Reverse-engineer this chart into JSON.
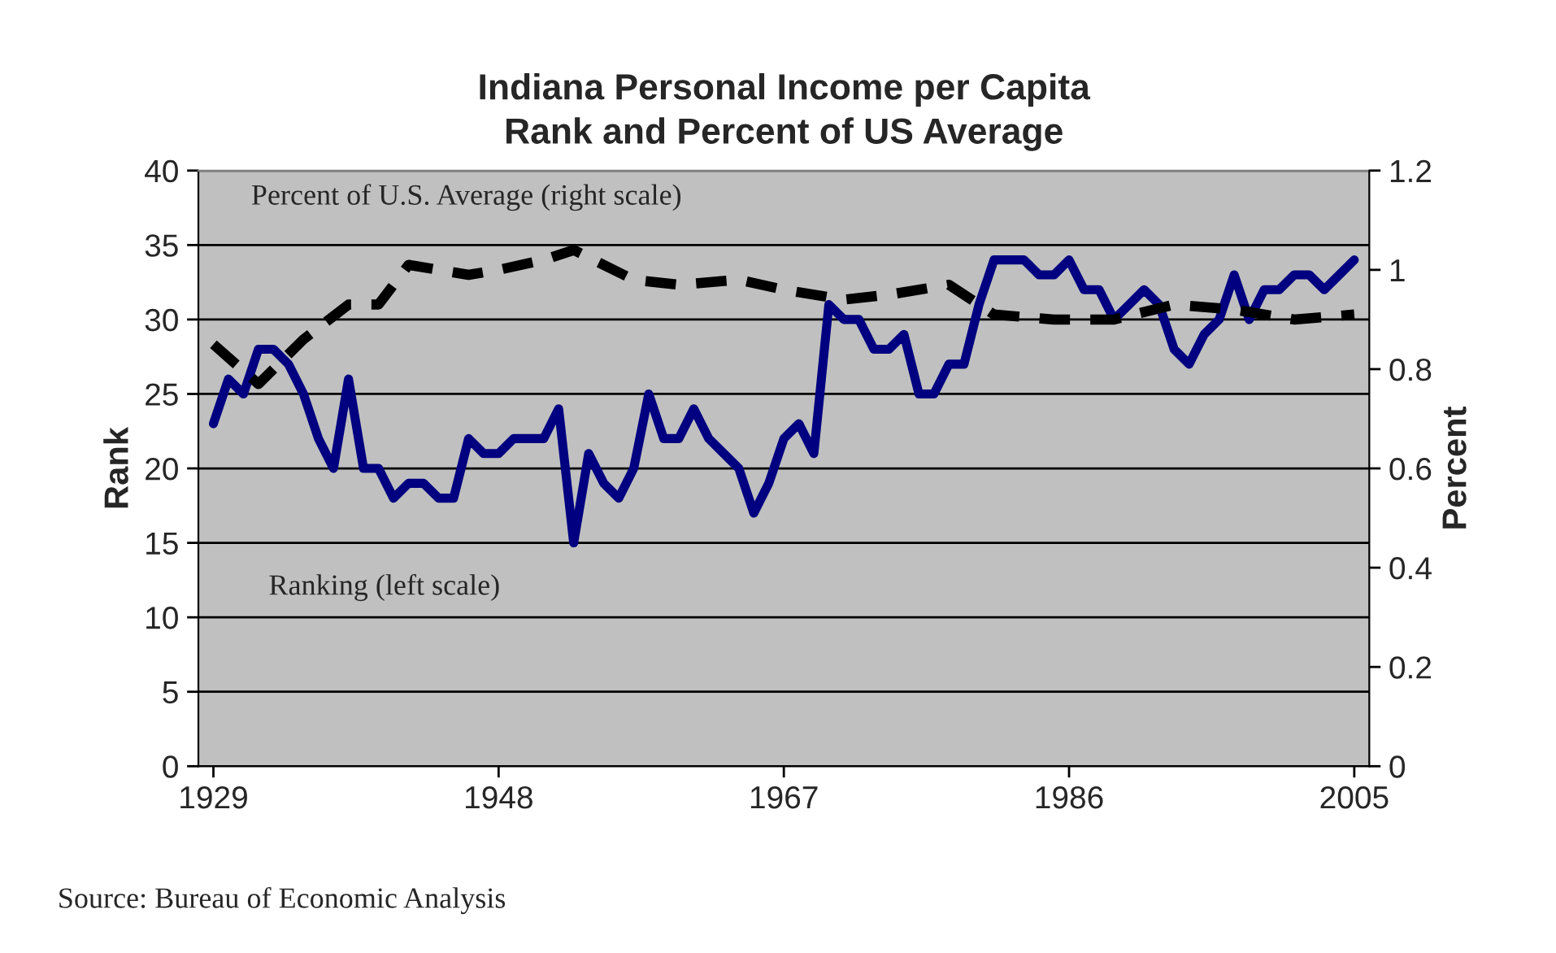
{
  "chart_data": {
    "type": "line",
    "title": "Indiana Personal Income per Capita\nRank and Percent of US Average",
    "ylabel": "Rank",
    "y2label": "Percent",
    "x": [
      1929,
      1930,
      1931,
      1932,
      1933,
      1934,
      1935,
      1936,
      1937,
      1938,
      1939,
      1940,
      1941,
      1942,
      1943,
      1944,
      1945,
      1946,
      1947,
      1948,
      1949,
      1950,
      1951,
      1952,
      1953,
      1954,
      1955,
      1956,
      1957,
      1958,
      1959,
      1960,
      1961,
      1962,
      1963,
      1964,
      1965,
      1966,
      1967,
      1968,
      1969,
      1970,
      1971,
      1972,
      1973,
      1974,
      1975,
      1976,
      1977,
      1978,
      1979,
      1980,
      1981,
      1982,
      1983,
      1984,
      1985,
      1986,
      1987,
      1988,
      1989,
      1990,
      1991,
      1992,
      1993,
      1994,
      1995,
      1996,
      1997,
      1998,
      1999,
      2000,
      2001,
      2002,
      2003,
      2004,
      2005
    ],
    "series": [
      {
        "name": "Ranking (left scale)",
        "color": "#000080",
        "line_style": "solid",
        "values": [
          23,
          26,
          25,
          28,
          28,
          27,
          25,
          22,
          20,
          26,
          20,
          20,
          18,
          19,
          19,
          18,
          18,
          22,
          21,
          21,
          22,
          22,
          22,
          24,
          15,
          21,
          19,
          18,
          20,
          25,
          22,
          22,
          24,
          22,
          21,
          20,
          17,
          19,
          22,
          23,
          21,
          31,
          30,
          30,
          28,
          28,
          29,
          25,
          25,
          27,
          27,
          31,
          34,
          34,
          34,
          33,
          33,
          34,
          32,
          32,
          30,
          31,
          32,
          31,
          28,
          27,
          29,
          30,
          33,
          30,
          32,
          32,
          33,
          33,
          32,
          33,
          34
        ]
      },
      {
        "name": "Percent of U.S. Average (right scale)",
        "color": "#000000",
        "line_style": "dashed",
        "axis": "y2",
        "x": [
          1929,
          1932,
          1935,
          1938,
          1940,
          1942,
          1946,
          1948,
          1951,
          1953,
          1957,
          1960,
          1964,
          1967,
          1971,
          1974,
          1978,
          1981,
          1985,
          1989,
          1993,
          1997,
          2001,
          2005
        ],
        "values": [
          0.85,
          0.77,
          0.86,
          0.93,
          0.93,
          1.01,
          0.99,
          1.0,
          1.02,
          1.04,
          0.98,
          0.97,
          0.98,
          0.96,
          0.94,
          0.95,
          0.97,
          0.91,
          0.9,
          0.9,
          0.93,
          0.92,
          0.9,
          0.91
        ]
      }
    ],
    "xlim": [
      1928,
      2006
    ],
    "xticks": [
      1929,
      1948,
      1967,
      1986,
      2005
    ],
    "ylim": [
      0,
      40
    ],
    "yticks": [
      0,
      5,
      10,
      15,
      20,
      25,
      30,
      35,
      40
    ],
    "y2lim": [
      0,
      1.2
    ],
    "y2ticks": [
      0,
      0.2,
      0.4,
      0.6,
      0.8,
      1,
      1.2
    ],
    "grid": "y",
    "legend": false,
    "annotations": [
      "Source: Bureau of Economic Analysis"
    ]
  }
}
